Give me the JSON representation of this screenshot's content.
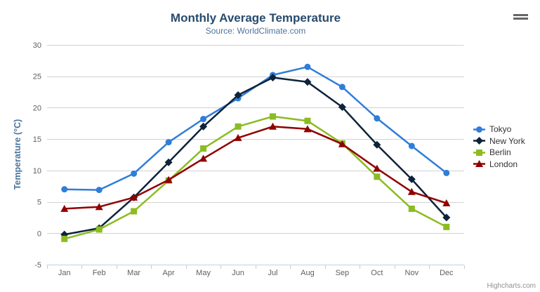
{
  "chart": {
    "context_menu_icon": "hamburger-menu-icon",
    "credits_label": "Highcharts.com"
  },
  "chart_data": {
    "type": "line",
    "title": "Monthly Average Temperature",
    "subtitle": "Source: WorldClimate.com",
    "xlabel": "",
    "ylabel": "Temperature (°C)",
    "categories": [
      "Jan",
      "Feb",
      "Mar",
      "Apr",
      "May",
      "Jun",
      "Jul",
      "Aug",
      "Sep",
      "Oct",
      "Nov",
      "Dec"
    ],
    "series": [
      {
        "name": "Tokyo",
        "color": "#2f7ed8",
        "marker": "circle",
        "values": [
          7.0,
          6.9,
          9.5,
          14.5,
          18.2,
          21.5,
          25.2,
          26.5,
          23.3,
          18.3,
          13.9,
          9.6
        ]
      },
      {
        "name": "New York",
        "color": "#0d233a",
        "marker": "diamond",
        "values": [
          -0.2,
          0.8,
          5.7,
          11.3,
          17.0,
          22.0,
          24.8,
          24.1,
          20.1,
          14.1,
          8.6,
          2.5
        ]
      },
      {
        "name": "Berlin",
        "color": "#8bbc21",
        "marker": "square",
        "values": [
          -0.9,
          0.6,
          3.5,
          8.4,
          13.5,
          17.0,
          18.6,
          17.9,
          14.3,
          9.0,
          3.9,
          1.0
        ]
      },
      {
        "name": "London",
        "color": "#910000",
        "marker": "triangle-up",
        "values": [
          3.9,
          4.2,
          5.7,
          8.5,
          11.9,
          15.2,
          17.0,
          16.6,
          14.2,
          10.3,
          6.6,
          4.8
        ]
      }
    ],
    "ylim": [
      -5,
      30
    ],
    "yticks": [
      -5,
      0,
      5,
      10,
      15,
      20,
      25,
      30
    ],
    "grid": true,
    "legend_position": "right",
    "axis_line_color": "#c0d0e0",
    "grid_line_color": "#d2d2d2"
  }
}
